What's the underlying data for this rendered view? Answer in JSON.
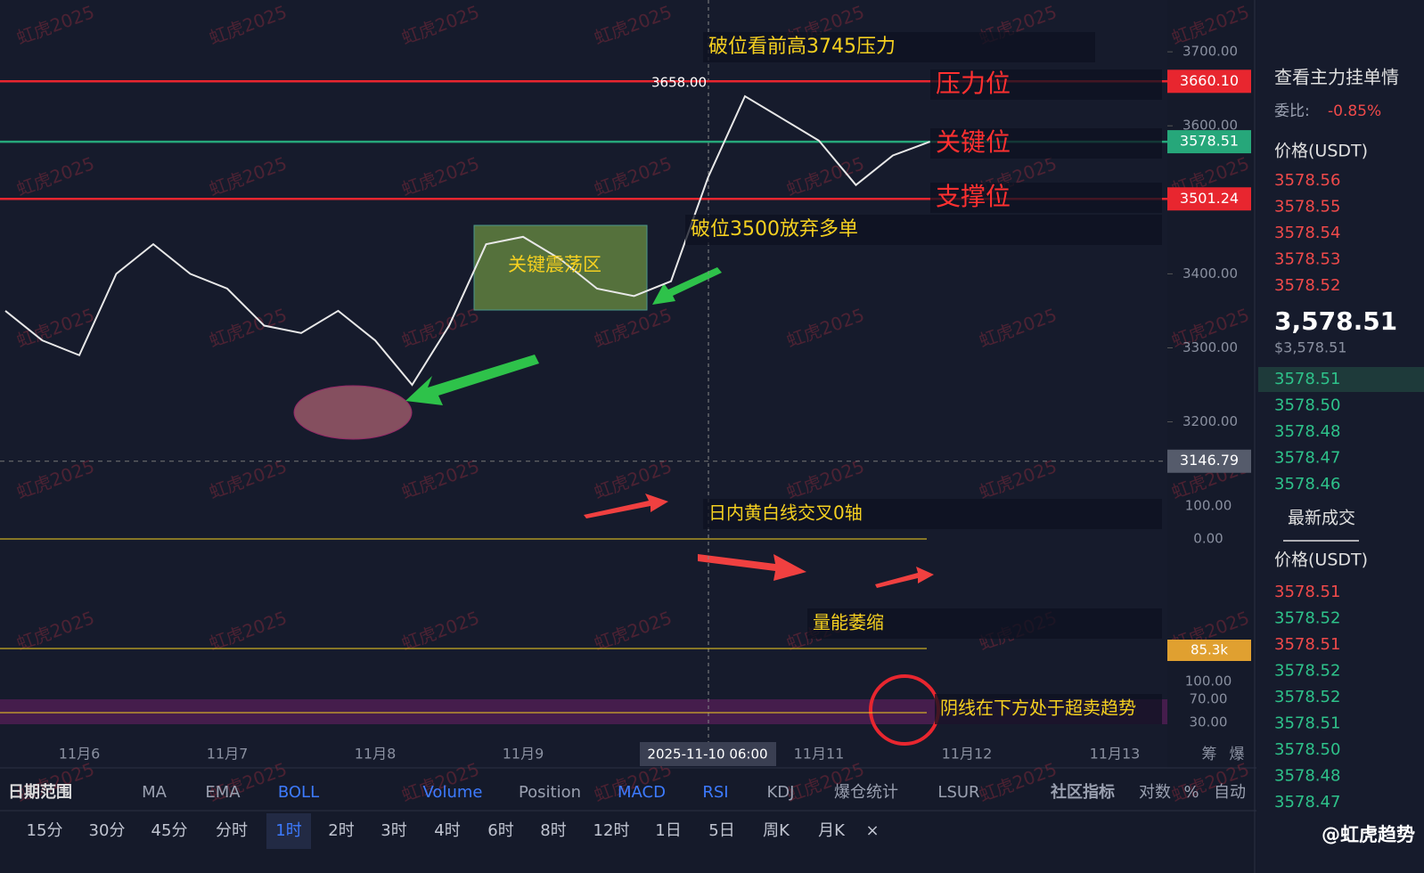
{
  "watermark": "虹虎2025",
  "chart_data": {
    "type": "line",
    "color": "#e8e8e8",
    "values": [
      3350,
      3310,
      3290,
      3400,
      3440,
      3400,
      3380,
      3330,
      3320,
      3350,
      3310,
      3250,
      3330,
      3440,
      3450,
      3420,
      3380,
      3370,
      3390,
      3530,
      3640,
      3610,
      3580,
      3520,
      3560,
      3578.51
    ],
    "ylim": [
      3120,
      3770
    ],
    "yticks": [
      {
        "value": 3700,
        "label": "3700.00"
      },
      {
        "value": 3600,
        "label": "3600.00"
      },
      {
        "value": 3400,
        "label": "3400.00"
      },
      {
        "value": 3300,
        "label": "3300.00"
      },
      {
        "value": 3200,
        "label": "3200.00"
      }
    ],
    "levels": [
      {
        "value": 3660.1,
        "label": "3660.10",
        "color": "#e8262f"
      },
      {
        "value": 3578.51,
        "label": "3578.51",
        "color": "#26a77a"
      },
      {
        "value": 3501.24,
        "label": "3501.24",
        "color": "#e8262f"
      },
      {
        "value": 3146.79,
        "label": "3146.79",
        "color": "#555b6b"
      }
    ],
    "high_label": "3658.00",
    "annotations": [
      "破位看前高3745压力",
      "压力位",
      "关键位",
      "支撑位",
      "破位3500放弃多单",
      "关键震荡区",
      "日内黄白线交叉0轴",
      "量能萎缩",
      "阴线在下方处于超卖趋势"
    ],
    "macd_ticks": [
      "100.00",
      "0.00"
    ],
    "volume_label": "85.3k",
    "rsi_ticks": [
      "100.00",
      "70.00",
      "30.00"
    ],
    "x_labels": [
      "11月6",
      "11月7",
      "11月8",
      "11月9",
      "11月11",
      "11月12",
      "11月13"
    ],
    "cursor_label": "2025-11-10 06:00",
    "axis_icons": [
      "筹",
      "爆"
    ]
  },
  "toolbar": {
    "indicators": [
      "日期范围",
      "MA",
      "EMA",
      "BOLL",
      "Volume",
      "Position",
      "MACD",
      "RSI",
      "KDJ",
      "爆仓统计",
      "LSUR",
      "社区指标",
      "对数",
      "%",
      "自动"
    ],
    "intervals": [
      "15分",
      "30分",
      "45分",
      "分时",
      "1时",
      "2时",
      "3时",
      "4时",
      "6时",
      "8时",
      "12时",
      "1日",
      "5日",
      "周K",
      "月K",
      "×"
    ]
  },
  "orderbook": {
    "title": "查看主力挂单情",
    "ratio_label": "委比:",
    "ratio": "-0.85%",
    "price_header": "价格(USDT)",
    "asks": [
      "3578.56",
      "3578.55",
      "3578.54",
      "3578.53",
      "3578.52"
    ],
    "last": "3,578.51",
    "last_usd": "$3,578.51",
    "bids": [
      "3578.51",
      "3578.50",
      "3578.48",
      "3578.47",
      "3578.46"
    ]
  },
  "trades": {
    "title": "最新成交",
    "price_header": "价格(USDT)",
    "rows": [
      [
        "3578.51",
        "sell"
      ],
      [
        "3578.52",
        "buy"
      ],
      [
        "3578.51",
        "sell"
      ],
      [
        "3578.52",
        "buy"
      ],
      [
        "3578.52",
        "buy"
      ],
      [
        "3578.51",
        "buy"
      ],
      [
        "3578.50",
        "buy"
      ],
      [
        "3578.48",
        "buy"
      ],
      [
        "3578.47",
        "buy"
      ]
    ]
  },
  "footer": "@虹虎趋势"
}
